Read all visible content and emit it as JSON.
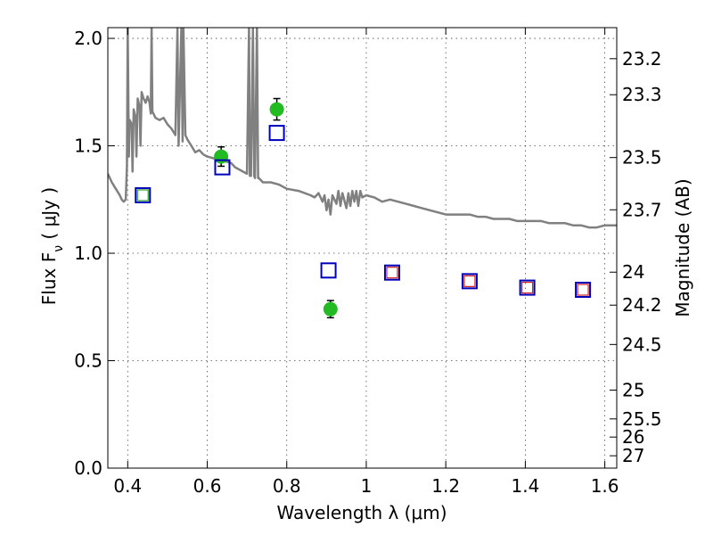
{
  "chart_data": {
    "type": "scatter",
    "xlabel": "Wavelength  λ (μm)",
    "ylabel": "Flux  F",
    "ylabel_subscript": "ν",
    "ylabel_unit": " ( μJy )",
    "ylabel_right": "Magnitude (AB)",
    "xlim": [
      0.35,
      1.63
    ],
    "ylim": [
      0.0,
      2.05
    ],
    "grid": true,
    "x_ticks": [
      0.4,
      0.6,
      0.8,
      1.0,
      1.2,
      1.4,
      1.6
    ],
    "x_tick_labels": [
      "0.4",
      "0.6",
      "0.8",
      "1",
      "1.2",
      "1.4",
      "1.6"
    ],
    "y_ticks": [
      0.0,
      0.5,
      1.0,
      1.5,
      2.0
    ],
    "y_tick_labels": [
      "0.0",
      "0.5",
      "1.0",
      "1.5",
      "2.0"
    ],
    "right_ticks": [
      {
        "value": 23.2,
        "label": "23.2"
      },
      {
        "value": 23.3,
        "label": "23.3"
      },
      {
        "value": 23.5,
        "label": "23.5"
      },
      {
        "value": 23.7,
        "label": "23.7"
      },
      {
        "value": 24.0,
        "label": "24"
      },
      {
        "value": 24.2,
        "label": "24.2"
      },
      {
        "value": 24.5,
        "label": "24.5"
      },
      {
        "value": 25.0,
        "label": "25"
      },
      {
        "value": 25.5,
        "label": "25.5"
      },
      {
        "value": 26.0,
        "label": "26"
      },
      {
        "value": 27.0,
        "label": "27"
      }
    ],
    "series": [
      {
        "kind": "spectrum",
        "color": "#808080",
        "points": [
          [
            0.35,
            1.37
          ],
          [
            0.36,
            1.33
          ],
          [
            0.37,
            1.3
          ],
          [
            0.38,
            1.27
          ],
          [
            0.385,
            1.25
          ],
          [
            0.39,
            1.24
          ],
          [
            0.395,
            1.25
          ],
          [
            0.398,
            1.4
          ],
          [
            0.4,
            2.05
          ],
          [
            0.403,
            1.45
          ],
          [
            0.405,
            1.62
          ],
          [
            0.41,
            1.6
          ],
          [
            0.412,
            1.38
          ],
          [
            0.415,
            1.67
          ],
          [
            0.42,
            1.63
          ],
          [
            0.422,
            1.45
          ],
          [
            0.425,
            1.72
          ],
          [
            0.43,
            1.68
          ],
          [
            0.432,
            1.5
          ],
          [
            0.435,
            1.75
          ],
          [
            0.44,
            1.72
          ],
          [
            0.445,
            1.7
          ],
          [
            0.45,
            1.73
          ],
          [
            0.455,
            1.7
          ],
          [
            0.458,
            1.65
          ],
          [
            0.46,
            2.05
          ],
          [
            0.462,
            1.66
          ],
          [
            0.47,
            1.63
          ],
          [
            0.48,
            1.62
          ],
          [
            0.49,
            1.63
          ],
          [
            0.5,
            1.6
          ],
          [
            0.51,
            1.58
          ],
          [
            0.52,
            1.55
          ],
          [
            0.525,
            2.05
          ],
          [
            0.528,
            1.5
          ],
          [
            0.535,
            2.05
          ],
          [
            0.538,
            1.52
          ],
          [
            0.54,
            2.05
          ],
          [
            0.545,
            1.55
          ],
          [
            0.55,
            1.53
          ],
          [
            0.56,
            1.5
          ],
          [
            0.57,
            1.47
          ],
          [
            0.58,
            1.48
          ],
          [
            0.59,
            1.46
          ],
          [
            0.6,
            1.45
          ],
          [
            0.62,
            1.44
          ],
          [
            0.64,
            1.43
          ],
          [
            0.66,
            1.42
          ],
          [
            0.67,
            1.4
          ],
          [
            0.68,
            1.39
          ],
          [
            0.69,
            1.38
          ],
          [
            0.7,
            1.37
          ],
          [
            0.705,
            2.05
          ],
          [
            0.707,
            1.36
          ],
          [
            0.71,
            1.36
          ],
          [
            0.715,
            2.05
          ],
          [
            0.718,
            1.36
          ],
          [
            0.72,
            1.35
          ],
          [
            0.725,
            2.05
          ],
          [
            0.728,
            1.35
          ],
          [
            0.73,
            1.35
          ],
          [
            0.74,
            1.33
          ],
          [
            0.76,
            1.33
          ],
          [
            0.78,
            1.32
          ],
          [
            0.8,
            1.3
          ],
          [
            0.83,
            1.29
          ],
          [
            0.86,
            1.27
          ],
          [
            0.87,
            1.26
          ],
          [
            0.88,
            1.28
          ],
          [
            0.89,
            1.24
          ],
          [
            0.895,
            1.27
          ],
          [
            0.9,
            1.2
          ],
          [
            0.905,
            1.25
          ],
          [
            0.91,
            1.18
          ],
          [
            0.915,
            1.27
          ],
          [
            0.92,
            1.25
          ],
          [
            0.925,
            1.23
          ],
          [
            0.93,
            1.29
          ],
          [
            0.935,
            1.22
          ],
          [
            0.94,
            1.28
          ],
          [
            0.95,
            1.21
          ],
          [
            0.955,
            1.28
          ],
          [
            0.96,
            1.22
          ],
          [
            0.965,
            1.29
          ],
          [
            0.97,
            1.24
          ],
          [
            0.975,
            1.29
          ],
          [
            0.98,
            1.22
          ],
          [
            0.985,
            1.29
          ],
          [
            0.99,
            1.26
          ],
          [
            1.0,
            1.27
          ],
          [
            1.02,
            1.26
          ],
          [
            1.04,
            1.24
          ],
          [
            1.06,
            1.25
          ],
          [
            1.08,
            1.24
          ],
          [
            1.1,
            1.23
          ],
          [
            1.12,
            1.22
          ],
          [
            1.14,
            1.21
          ],
          [
            1.16,
            1.2
          ],
          [
            1.18,
            1.19
          ],
          [
            1.2,
            1.18
          ],
          [
            1.22,
            1.18
          ],
          [
            1.24,
            1.18
          ],
          [
            1.26,
            1.18
          ],
          [
            1.28,
            1.17
          ],
          [
            1.3,
            1.17
          ],
          [
            1.32,
            1.16
          ],
          [
            1.34,
            1.16
          ],
          [
            1.36,
            1.16
          ],
          [
            1.38,
            1.15
          ],
          [
            1.4,
            1.15
          ],
          [
            1.42,
            1.15
          ],
          [
            1.44,
            1.15
          ],
          [
            1.46,
            1.14
          ],
          [
            1.48,
            1.14
          ],
          [
            1.5,
            1.14
          ],
          [
            1.52,
            1.13
          ],
          [
            1.54,
            1.13
          ],
          [
            1.56,
            1.12
          ],
          [
            1.58,
            1.12
          ],
          [
            1.6,
            1.13
          ],
          [
            1.63,
            1.13
          ]
        ]
      },
      {
        "kind": "observed",
        "marker": "circle",
        "color": "#22bb22",
        "x": [
          0.635,
          0.775,
          0.91
        ],
        "y": [
          1.45,
          1.67,
          0.74
        ],
        "err": [
          0.045,
          0.05,
          0.04
        ]
      },
      {
        "kind": "model",
        "marker": "square",
        "color": "#0000bb",
        "x": [
          0.438,
          0.638,
          0.775,
          0.905,
          1.065,
          1.26,
          1.405,
          1.545
        ],
        "y": [
          1.27,
          1.4,
          1.56,
          0.92,
          0.91,
          0.87,
          0.84,
          0.83
        ]
      },
      {
        "kind": "model-inner",
        "marker": "square-small",
        "colors": [
          "#2a9d2a",
          "#cc2222",
          "#cc2222",
          "#cc2222",
          "#cc2222"
        ],
        "x": [
          0.438,
          1.065,
          1.26,
          1.405,
          1.545
        ],
        "y": [
          1.27,
          0.91,
          0.87,
          0.84,
          0.83
        ]
      }
    ]
  }
}
